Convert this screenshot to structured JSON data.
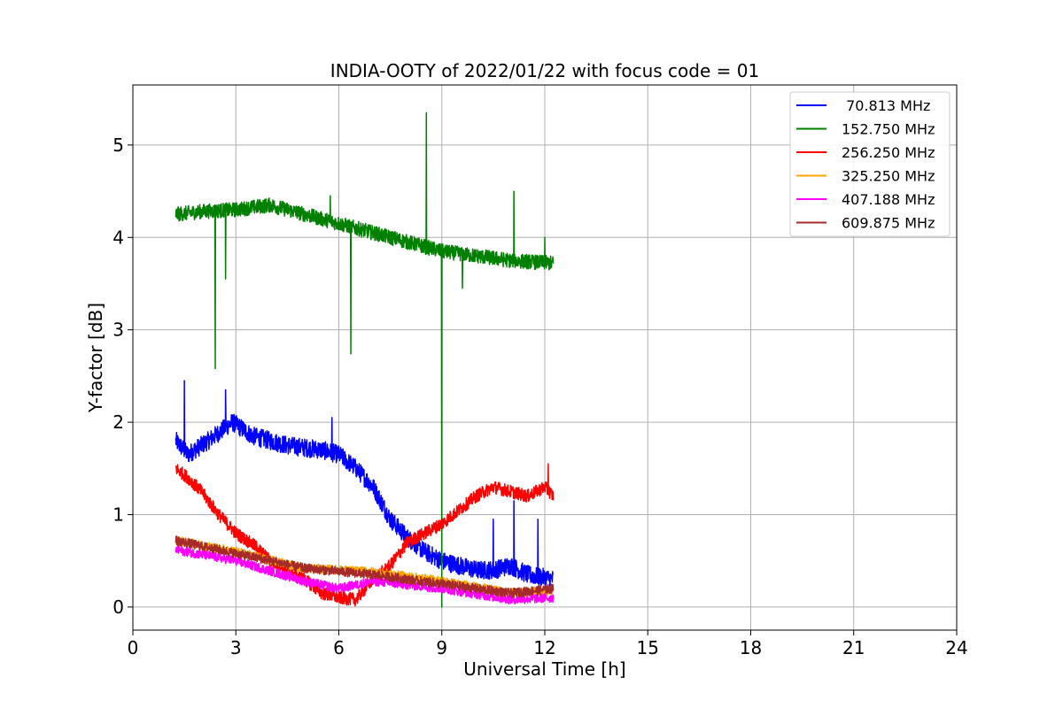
{
  "chart_data": {
    "type": "line",
    "title": "INDIA-OOTY of 2022/01/22 with focus code = 01",
    "xlabel": "Universal Time [h]",
    "ylabel": "Y-factor [dB]",
    "xlim": [
      0,
      24
    ],
    "ylim": [
      -0.25,
      5.65
    ],
    "xticks": [
      0,
      3,
      6,
      9,
      12,
      15,
      18,
      21,
      24
    ],
    "yticks": [
      0,
      1,
      2,
      3,
      4,
      5
    ],
    "grid": true,
    "legend_position": "top-right",
    "series": [
      {
        "name": " 70.813 MHz",
        "color": "#0000ff",
        "noise": 0.1,
        "points": [
          [
            1.25,
            1.8
          ],
          [
            1.6,
            1.65
          ],
          [
            2.2,
            1.8
          ],
          [
            2.9,
            2.0
          ],
          [
            3.5,
            1.85
          ],
          [
            4.5,
            1.75
          ],
          [
            5.5,
            1.7
          ],
          [
            6.0,
            1.65
          ],
          [
            6.5,
            1.5
          ],
          [
            7.0,
            1.3
          ],
          [
            7.5,
            0.95
          ],
          [
            8.0,
            0.75
          ],
          [
            8.5,
            0.6
          ],
          [
            9.0,
            0.5
          ],
          [
            9.5,
            0.45
          ],
          [
            10.0,
            0.4
          ],
          [
            10.5,
            0.4
          ],
          [
            11.0,
            0.45
          ],
          [
            11.5,
            0.35
          ],
          [
            12.25,
            0.3
          ]
        ],
        "spikes": [
          [
            1.5,
            2.45
          ],
          [
            2.7,
            2.35
          ],
          [
            5.8,
            2.05
          ],
          [
            10.5,
            0.95
          ],
          [
            11.1,
            1.15
          ],
          [
            11.8,
            0.95
          ]
        ]
      },
      {
        "name": "152.750 MHz",
        "color": "#008000",
        "noise": 0.08,
        "points": [
          [
            1.25,
            4.25
          ],
          [
            2.0,
            4.28
          ],
          [
            3.0,
            4.3
          ],
          [
            4.0,
            4.35
          ],
          [
            5.0,
            4.25
          ],
          [
            6.0,
            4.15
          ],
          [
            7.0,
            4.05
          ],
          [
            8.0,
            3.95
          ],
          [
            9.0,
            3.85
          ],
          [
            10.0,
            3.8
          ],
          [
            11.0,
            3.75
          ],
          [
            12.25,
            3.72
          ]
        ],
        "spikes": [
          [
            2.4,
            2.58
          ],
          [
            2.7,
            3.55
          ],
          [
            5.75,
            4.45
          ],
          [
            6.35,
            2.74
          ],
          [
            8.55,
            5.35
          ],
          [
            9.0,
            0.0
          ],
          [
            9.6,
            3.45
          ],
          [
            11.1,
            4.5
          ],
          [
            12.0,
            4.0
          ]
        ]
      },
      {
        "name": "256.250 MHz",
        "color": "#ff0000",
        "noise": 0.07,
        "points": [
          [
            1.25,
            1.5
          ],
          [
            1.6,
            1.4
          ],
          [
            2.0,
            1.25
          ],
          [
            2.5,
            1.0
          ],
          [
            3.0,
            0.8
          ],
          [
            3.6,
            0.65
          ],
          [
            4.0,
            0.5
          ],
          [
            4.5,
            0.4
          ],
          [
            5.0,
            0.3
          ],
          [
            5.5,
            0.15
          ],
          [
            6.0,
            0.1
          ],
          [
            6.5,
            0.08
          ],
          [
            7.0,
            0.3
          ],
          [
            7.5,
            0.45
          ],
          [
            8.0,
            0.7
          ],
          [
            8.5,
            0.8
          ],
          [
            9.0,
            0.9
          ],
          [
            9.5,
            1.05
          ],
          [
            10.0,
            1.2
          ],
          [
            10.5,
            1.3
          ],
          [
            11.0,
            1.25
          ],
          [
            11.5,
            1.2
          ],
          [
            12.0,
            1.3
          ],
          [
            12.25,
            1.2
          ]
        ],
        "spikes": [
          [
            12.1,
            1.55
          ]
        ]
      },
      {
        "name": "325.250 MHz",
        "color": "#ffa500",
        "noise": 0.05,
        "points": [
          [
            1.25,
            0.72
          ],
          [
            3.0,
            0.6
          ],
          [
            5.0,
            0.42
          ],
          [
            7.0,
            0.38
          ],
          [
            9.0,
            0.28
          ],
          [
            11.0,
            0.15
          ],
          [
            12.25,
            0.18
          ]
        ],
        "spikes": []
      },
      {
        "name": "407.188 MHz",
        "color": "#ff00ff",
        "noise": 0.05,
        "points": [
          [
            1.25,
            0.62
          ],
          [
            3.0,
            0.5
          ],
          [
            5.0,
            0.28
          ],
          [
            6.0,
            0.2
          ],
          [
            7.0,
            0.28
          ],
          [
            9.0,
            0.2
          ],
          [
            11.0,
            0.08
          ],
          [
            12.25,
            0.1
          ]
        ],
        "spikes": []
      },
      {
        "name": "609.875 MHz",
        "color": "#a52a2a",
        "noise": 0.05,
        "points": [
          [
            1.25,
            0.72
          ],
          [
            3.0,
            0.58
          ],
          [
            5.0,
            0.42
          ],
          [
            7.0,
            0.35
          ],
          [
            9.0,
            0.25
          ],
          [
            11.0,
            0.15
          ],
          [
            12.25,
            0.2
          ]
        ],
        "spikes": []
      }
    ]
  }
}
